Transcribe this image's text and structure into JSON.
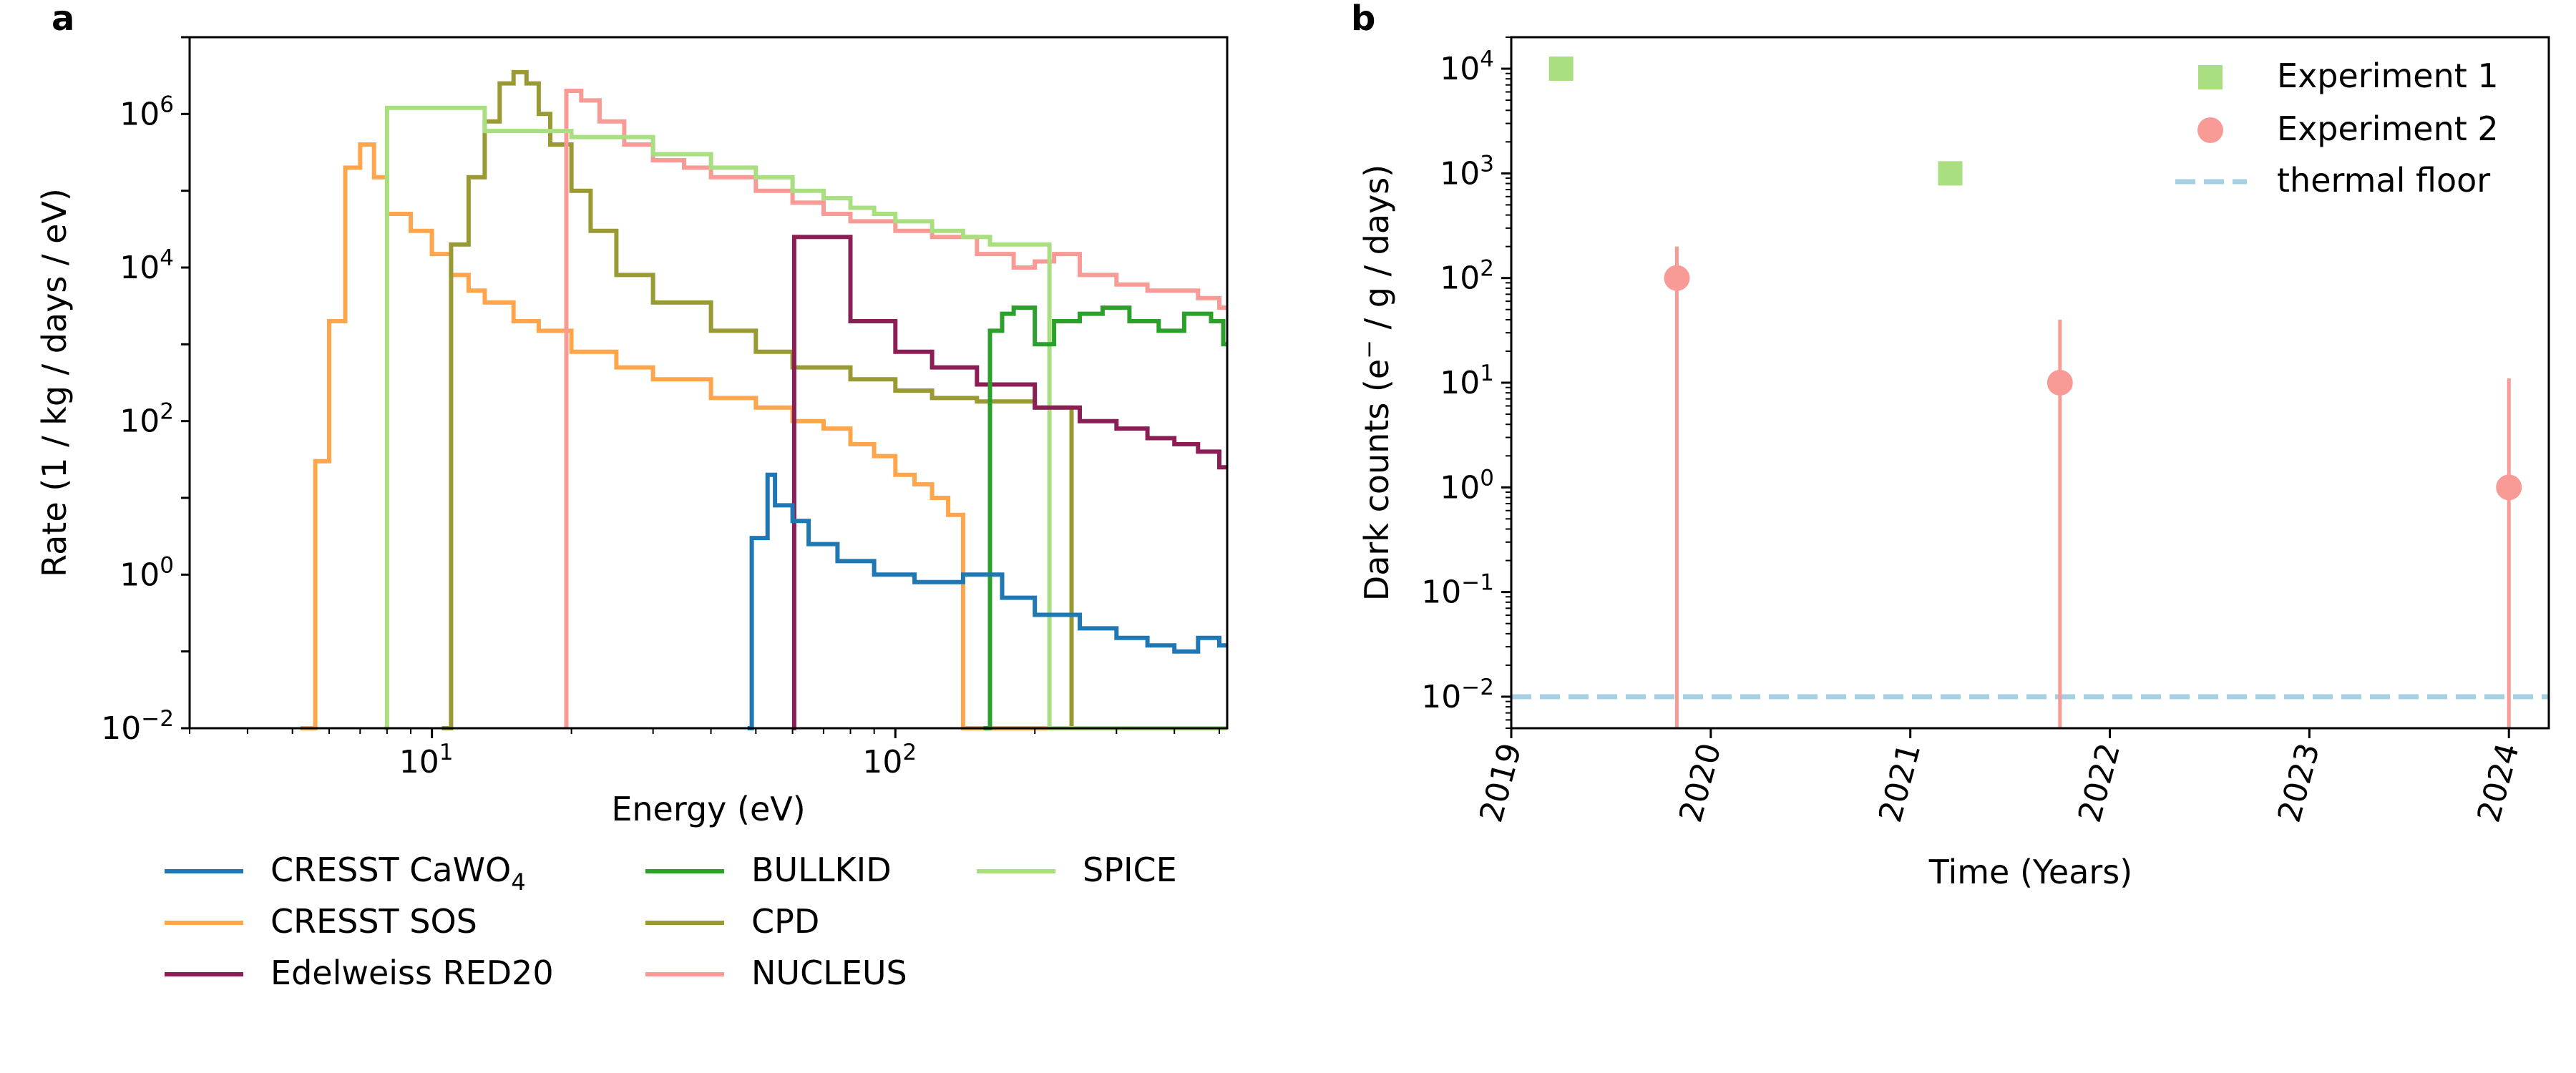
{
  "panels": {
    "a": {
      "letter": "a"
    },
    "b": {
      "letter": "b"
    }
  },
  "chart_data": [
    {
      "panel": "a",
      "type": "line",
      "step": true,
      "xscale": "log",
      "yscale": "log",
      "xlim": [
        3,
        520
      ],
      "ylim": [
        0.01,
        10000000
      ],
      "xlabel": "Energy (eV)",
      "ylabel": "Rate (1 / kg / days / eV)",
      "xticks": [
        {
          "value": 10,
          "base": "10",
          "exp": "1"
        },
        {
          "value": 100,
          "base": "10",
          "exp": "2"
        }
      ],
      "yticks": [
        {
          "value": 0.01,
          "base": "10",
          "exp": "−2"
        },
        {
          "value": 1,
          "base": "10",
          "exp": "0"
        },
        {
          "value": 100,
          "base": "10",
          "exp": "2"
        },
        {
          "value": 10000,
          "base": "10",
          "exp": "4"
        },
        {
          "value": 1000000,
          "base": "10",
          "exp": "6"
        }
      ],
      "legend_placement": "below plot, three columns",
      "series": [
        {
          "name": "CRESST SOS",
          "label_main": "CRESST SOS",
          "label_sub": "",
          "color": "#ffa64d",
          "x": [
            5.2,
            5.6,
            6.0,
            6.5,
            7.0,
            7.5,
            8.0,
            9.0,
            10.0,
            11.0,
            12.0,
            13.0,
            15.0,
            17.0,
            20.0,
            25.0,
            30.0,
            40.0,
            50.0,
            60.0,
            70.0,
            80.0,
            90.0,
            100.0,
            110.0,
            120.0,
            130.0,
            140.0
          ],
          "y": [
            0.01,
            30,
            2000,
            200000,
            400000,
            150000,
            50000,
            30000,
            15000,
            8000,
            5000,
            3500,
            2000,
            1500,
            800,
            500,
            350,
            200,
            150,
            100,
            80,
            50,
            35,
            20,
            15,
            10,
            6,
            0.01
          ]
        },
        {
          "name": "CPD",
          "label_main": "CPD",
          "label_sub": "",
          "color": "#9a9a35",
          "x": [
            10.5,
            11.0,
            12.0,
            13.0,
            14.0,
            15.0,
            16.0,
            17.0,
            18.0,
            20.0,
            22.0,
            25.0,
            30.0,
            40.0,
            50.0,
            60.0,
            70.0,
            80.0,
            100.0,
            120.0,
            150.0,
            200.0,
            240.0
          ],
          "y": [
            0.01,
            20000,
            150000,
            800000,
            2500000,
            3500000,
            2500000,
            1000000,
            400000,
            100000,
            30000,
            8000,
            3500,
            1500,
            800,
            500,
            500,
            350,
            250,
            200,
            180,
            150,
            0.01
          ]
        },
        {
          "name": "NUCLEUS",
          "label_main": "NUCLEUS",
          "label_sub": "",
          "color": "#f89b97",
          "x": [
            19.5,
            19.5,
            21.0,
            23.0,
            26.0,
            30.0,
            35.0,
            40.0,
            50.0,
            60.0,
            70.0,
            80.0,
            100.0,
            120.0,
            150.0,
            180.0,
            200.0,
            220.0,
            250.0,
            300.0,
            350.0,
            400.0,
            450.0,
            500.0
          ],
          "y": [
            0.01,
            2000000,
            1500000,
            800000,
            400000,
            250000,
            200000,
            150000,
            100000,
            70000,
            50000,
            40000,
            30000,
            25000,
            15000,
            10000,
            12000,
            15000,
            8000,
            6000,
            5000,
            5000,
            4000,
            3000
          ]
        },
        {
          "name": "SPICE",
          "label_main": "SPICE",
          "label_sub": "",
          "color": "#a9df80",
          "x": [
            7.9,
            8.0,
            13.0,
            20.0,
            30.0,
            40.0,
            50.0,
            60.0,
            70.0,
            80.0,
            90.0,
            100.0,
            120.0,
            140.0,
            160.0,
            180.0,
            200.0,
            210.0,
            215.0,
            220.0
          ],
          "y": [
            0.01,
            1200000,
            600000,
            500000,
            300000,
            200000,
            150000,
            100000,
            80000,
            60000,
            50000,
            40000,
            30000,
            25000,
            20000,
            20000,
            20000,
            20000,
            0.01,
            0.01
          ]
        },
        {
          "name": "Edelweiss RED20",
          "label_main": "Edelweiss RED20",
          "label_sub": "",
          "color": "#8b1f55",
          "x": [
            60.0,
            60.5,
            80.0,
            100.0,
            120.0,
            150.0,
            200.0,
            250.0,
            300.0,
            350.0,
            400.0,
            450.0,
            500.0
          ],
          "y": [
            0.01,
            25000,
            2000,
            800,
            500,
            300,
            150,
            100,
            80,
            60,
            50,
            40,
            25
          ]
        },
        {
          "name": "BULLKID",
          "label_main": "BULLKID",
          "label_sub": "",
          "color": "#2ca02c",
          "x": [
            155.0,
            160.0,
            170.0,
            180.0,
            200.0,
            220.0,
            250.0,
            280.0,
            320.0,
            370.0,
            420.0,
            480.0,
            510.0
          ],
          "y": [
            0.01,
            1500,
            2500,
            3000,
            1000,
            2000,
            2500,
            3000,
            2000,
            1500,
            2500,
            2000,
            1000
          ]
        },
        {
          "name": "CRESST CaWO4",
          "label_main": "CRESST CaWO",
          "label_sub": "4",
          "color": "#1f77b4",
          "x": [
            48.0,
            49.0,
            53.0,
            55.0,
            60.0,
            65.0,
            75.0,
            90.0,
            110.0,
            140.0,
            170.0,
            200.0,
            250.0,
            300.0,
            350.0,
            400.0,
            450.0,
            500.0
          ],
          "y": [
            0.01,
            3,
            20,
            8,
            5,
            2.5,
            1.5,
            1,
            0.8,
            1,
            0.5,
            0.3,
            0.2,
            0.15,
            0.12,
            0.1,
            0.15,
            0.12
          ]
        }
      ]
    },
    {
      "panel": "b",
      "type": "scatter",
      "yscale": "log",
      "xlim": [
        2019.0,
        2024.2
      ],
      "ylim": [
        0.005,
        20000
      ],
      "xlabel": "Time (Years)",
      "ylabel": "Dark counts (e",
      "ylabel_sup": "−",
      "ylabel_tail": " / g / days)",
      "xticks": [
        "2019",
        "2020",
        "2021",
        "2022",
        "2023",
        "2024"
      ],
      "xtick_rotation": 75,
      "yticks": [
        {
          "value": 0.01,
          "base": "10",
          "exp": "−2"
        },
        {
          "value": 0.1,
          "base": "10",
          "exp": "−1"
        },
        {
          "value": 1,
          "base": "10",
          "exp": "0"
        },
        {
          "value": 10,
          "base": "10",
          "exp": "1"
        },
        {
          "value": 100,
          "base": "10",
          "exp": "2"
        },
        {
          "value": 1000,
          "base": "10",
          "exp": "3"
        },
        {
          "value": 10000,
          "base": "10",
          "exp": "4"
        }
      ],
      "legend_placement": "top-right",
      "series": [
        {
          "name": "Experiment 1",
          "marker": "square",
          "color": "#a9df80",
          "points": [
            {
              "x": 2019.25,
              "y": 10000
            },
            {
              "x": 2021.2,
              "y": 1000
            }
          ]
        },
        {
          "name": "Experiment 2",
          "marker": "circle",
          "color": "#f89b97",
          "points": [
            {
              "x": 2019.83,
              "y": 100,
              "err_low": 0.005,
              "err_high": 200
            },
            {
              "x": 2021.75,
              "y": 10,
              "err_low": 0.005,
              "err_high": 40
            },
            {
              "x": 2024.0,
              "y": 1,
              "err_low": 0.005,
              "err_high": 11
            }
          ]
        },
        {
          "name": "thermal floor",
          "marker": "dashed-line",
          "color": "#a6cfe2",
          "y": 0.01
        }
      ]
    }
  ]
}
